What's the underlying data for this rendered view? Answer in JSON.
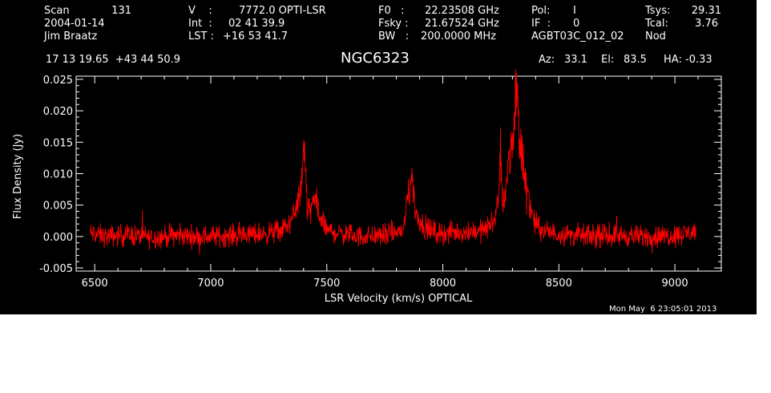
{
  "header": {
    "scan_label": "Scan",
    "scan_value": "131",
    "date": "2004-01-14",
    "observer": "Jim Braatz",
    "coords": "17 13 19.65  +43 44 50.9",
    "v_label": "V    :",
    "v_value": "7772.0 OPTI-LSR",
    "int_label": "Int  :",
    "int_value": "02 41 39.9",
    "lst_label": "LST :",
    "lst_value": "+16 53 41.7",
    "f0_label": "F0   :",
    "f0_value": "22.23508 GHz",
    "fsky_label": "Fsky :",
    "fsky_value": "21.67524 GHz",
    "bw_label": "BW   :",
    "bw_value": "200.0000 MHz",
    "pol_label": "Pol:",
    "pol_value": "I",
    "if_label": "IF  :",
    "if_value": "0",
    "project": "AGBT03C_012_02",
    "tsys_label": "Tsys:",
    "tsys_value": "29.31",
    "tcal_label": "Tcal:",
    "tcal_value": "3.76",
    "mode": "Nod",
    "source": "NGC6323",
    "az_label": "Az:",
    "az_value": "33.1",
    "el_label": "El:",
    "el_value": "83.5",
    "ha_label": "HA:",
    "ha_value": "-0.33",
    "timestamp": "Mon May  6 23:05:01 2013"
  },
  "chart_data": {
    "type": "line",
    "xlabel": "LSR Velocity (km/s) OPTICAL",
    "ylabel": "Flux Density (Jy)",
    "xlim": [
      6420,
      9200
    ],
    "ylim": [
      -0.0055,
      0.0255
    ],
    "xticks": [
      6500,
      7000,
      7500,
      8000,
      8500,
      9000
    ],
    "xtick_labels": [
      "6500",
      "7000",
      "7500",
      "8000",
      "8500",
      "9000"
    ],
    "yticks": [
      -0.005,
      0.0,
      0.005,
      0.01,
      0.015,
      0.02,
      0.025
    ],
    "ytick_labels": [
      "-0.005",
      "0.000",
      "0.005",
      "0.010",
      "0.015",
      "0.020",
      "0.025"
    ],
    "grid": false,
    "series": [
      {
        "color": "#ff0000",
        "x": [
          6480,
          6550,
          6650,
          6750,
          6850,
          6950,
          7050,
          7150,
          7250,
          7300,
          7340,
          7370,
          7390,
          7405,
          7415,
          7430,
          7450,
          7470,
          7500,
          7560,
          7650,
          7750,
          7830,
          7850,
          7870,
          7880,
          7895,
          7910,
          7940,
          8000,
          8100,
          8180,
          8220,
          8240,
          8248,
          8256,
          8270,
          8290,
          8305,
          8315,
          8325,
          8340,
          8360,
          8380,
          8400,
          8430,
          8480,
          8550,
          8650,
          8750,
          8850,
          8950,
          9020,
          9090
        ],
        "y": [
          0.0005,
          0.0,
          0.0003,
          -0.0002,
          0.0002,
          0.0,
          0.0001,
          0.0003,
          0.0005,
          0.001,
          0.002,
          0.0045,
          0.008,
          0.0135,
          0.005,
          0.004,
          0.006,
          0.003,
          0.001,
          0.0005,
          0.0,
          0.0002,
          0.001,
          0.007,
          0.009,
          0.004,
          0.003,
          0.002,
          0.001,
          0.0005,
          0.0008,
          0.001,
          0.0025,
          0.006,
          0.0145,
          0.005,
          0.007,
          0.0125,
          0.016,
          0.022,
          0.019,
          0.014,
          0.008,
          0.004,
          0.002,
          0.001,
          0.0005,
          0.0003,
          0.0,
          0.0002,
          0.0,
          0.0001,
          0.0003,
          0.0008
        ]
      }
    ]
  }
}
